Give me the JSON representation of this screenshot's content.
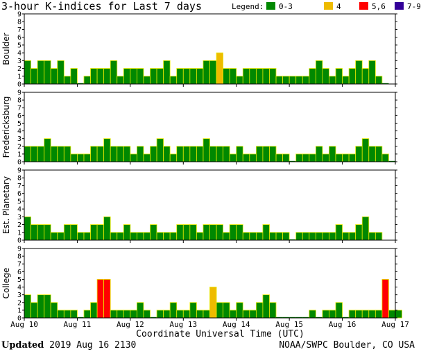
{
  "title": "3-hour K-indices for Last 7 days",
  "legend": {
    "label": "Legend:",
    "items": [
      {
        "label": "0-3",
        "color": "#008800"
      },
      {
        "label": "4",
        "color": "#eebb00"
      },
      {
        "label": "5,6",
        "color": "#ff0000"
      },
      {
        "label": "7-9",
        "color": "#330099"
      }
    ]
  },
  "footer": {
    "updated_label": "Updated",
    "updated_value": "2019 Aug 16 2130",
    "credit": "NOAA/SWPC Boulder, CO USA"
  },
  "chart_data": [
    {
      "type": "bar",
      "station": "Boulder",
      "ylim": [
        0,
        9
      ],
      "yticks": [
        "0",
        "1",
        "2",
        "3",
        "4",
        "5",
        "6",
        "7",
        "8",
        "9"
      ],
      "values": [
        3,
        2,
        3,
        3,
        2,
        3,
        1,
        2,
        0,
        1,
        2,
        2,
        2,
        3,
        1,
        2,
        2,
        2,
        1,
        2,
        2,
        3,
        1,
        2,
        2,
        2,
        2,
        3,
        3,
        4,
        2,
        2,
        1,
        2,
        2,
        2,
        2,
        2,
        1,
        1,
        1,
        1,
        1,
        2,
        3,
        2,
        1,
        2,
        1,
        2,
        3,
        2,
        3,
        1,
        0
      ]
    },
    {
      "type": "bar",
      "station": "Fredericksburg",
      "ylim": [
        0,
        9
      ],
      "yticks": [
        "0",
        "1",
        "2",
        "3",
        "4",
        "5",
        "6",
        "7",
        "8",
        "9"
      ],
      "values": [
        2,
        2,
        2,
        3,
        2,
        2,
        2,
        1,
        1,
        1,
        2,
        2,
        3,
        2,
        2,
        2,
        1,
        2,
        1,
        2,
        3,
        2,
        1,
        2,
        2,
        2,
        2,
        3,
        2,
        2,
        2,
        1,
        2,
        1,
        1,
        2,
        2,
        2,
        1,
        1,
        0,
        1,
        1,
        1,
        2,
        1,
        2,
        1,
        1,
        1,
        2,
        3,
        2,
        2,
        1,
        0
      ]
    },
    {
      "type": "bar",
      "station": "Est. Planetary",
      "ylim": [
        0,
        9
      ],
      "yticks": [
        "0",
        "1",
        "2",
        "3",
        "4",
        "5",
        "6",
        "7",
        "8",
        "9"
      ],
      "values": [
        3,
        2,
        2,
        2,
        1,
        1,
        2,
        2,
        1,
        1,
        2,
        2,
        3,
        1,
        1,
        2,
        1,
        1,
        1,
        2,
        1,
        1,
        1,
        2,
        2,
        2,
        1,
        2,
        2,
        2,
        1,
        2,
        2,
        1,
        1,
        1,
        2,
        1,
        1,
        1,
        0,
        1,
        1,
        1,
        1,
        1,
        1,
        2,
        1,
        1,
        2,
        3,
        1,
        1
      ]
    },
    {
      "type": "bar",
      "station": "College",
      "ylim": [
        0,
        9
      ],
      "yticks": [
        "0",
        "1",
        "2",
        "3",
        "4",
        "5",
        "6",
        "7",
        "8",
        "9"
      ],
      "values": [
        3,
        2,
        3,
        3,
        2,
        1,
        1,
        1,
        0,
        1,
        2,
        5,
        5,
        1,
        1,
        1,
        1,
        2,
        1,
        0,
        1,
        1,
        2,
        1,
        1,
        2,
        1,
        1,
        4,
        2,
        2,
        1,
        2,
        1,
        1,
        2,
        3,
        2,
        0,
        0,
        0,
        0,
        0,
        1,
        0,
        1,
        1,
        2,
        0,
        1,
        1,
        1,
        1,
        1,
        5,
        1,
        1
      ]
    }
  ],
  "xaxis": {
    "label": "Coordinate Universal Time (UTC)",
    "ticks": [
      "Aug 10",
      "Aug 11",
      "Aug 12",
      "Aug 13",
      "Aug 14",
      "Aug 15",
      "Aug 16",
      "Aug 17"
    ]
  }
}
